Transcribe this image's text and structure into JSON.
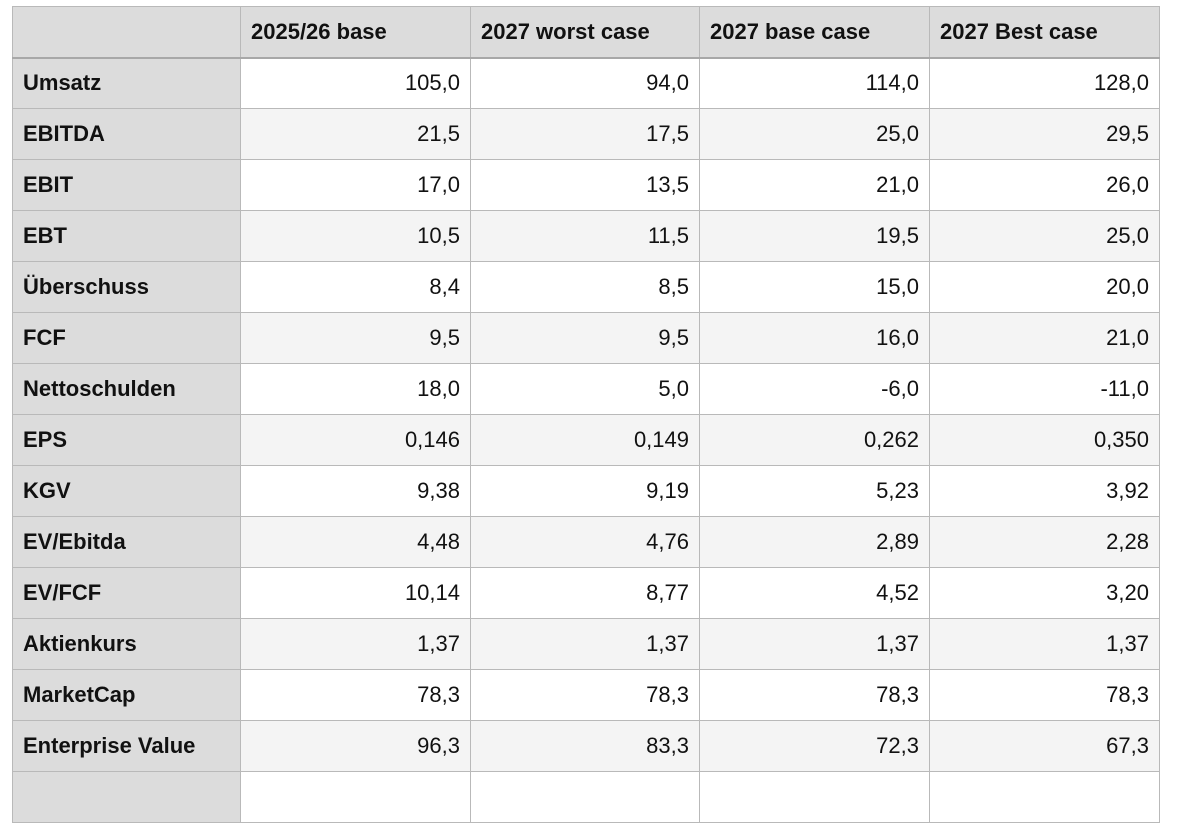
{
  "table": {
    "columns": [
      "2025/26 base",
      "2027 worst case",
      "2027 base case",
      "2027 Best case"
    ],
    "rows": [
      [
        "Umsatz",
        "105,0",
        "94,0",
        "114,0",
        "128,0"
      ],
      [
        "EBITDA",
        "21,5",
        "17,5",
        "25,0",
        "29,5"
      ],
      [
        "EBIT",
        "17,0",
        "13,5",
        "21,0",
        "26,0"
      ],
      [
        "EBT",
        "10,5",
        "11,5",
        "19,5",
        "25,0"
      ],
      [
        "Überschuss",
        "8,4",
        "8,5",
        "15,0",
        "20,0"
      ],
      [
        "FCF",
        "9,5",
        "9,5",
        "16,0",
        "21,0"
      ],
      [
        "Nettoschulden",
        "18,0",
        "5,0",
        "-6,0",
        "-11,0"
      ],
      [
        "EPS",
        "0,146",
        "0,149",
        "0,262",
        "0,350"
      ],
      [
        "KGV",
        "9,38",
        "9,19",
        "5,23",
        "3,92"
      ],
      [
        "EV/Ebitda",
        "4,48",
        "4,76",
        "2,89",
        "2,28"
      ],
      [
        "EV/FCF",
        "10,14",
        "8,77",
        "4,52",
        "3,20"
      ],
      [
        "Aktienkurs",
        "1,37",
        "1,37",
        "1,37",
        "1,37"
      ],
      [
        "MarketCap",
        "78,3",
        "78,3",
        "78,3",
        "78,3"
      ],
      [
        "Enterprise Value",
        "96,3",
        "83,3",
        "72,3",
        "67,3"
      ]
    ]
  }
}
